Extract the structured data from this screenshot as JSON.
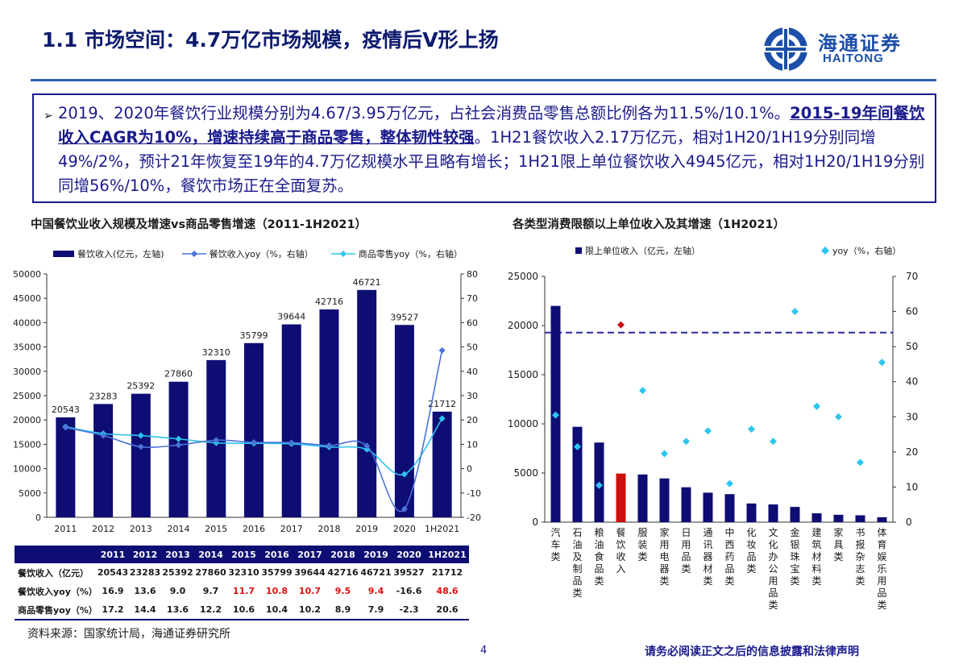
{
  "header": {
    "title": "1.1 市场空间：4.7万亿市场规模，疫情后V形上扬",
    "logo_cn": "海通证券",
    "logo_en": "HAITONG"
  },
  "summary": {
    "bullet": "➢",
    "text_1": "2019、2020年餐饮行业规模分别为4.67/3.95万亿元，占社会消费品零售总额比例各为11.5%/10.1%。",
    "text_2_bold": "2015-19年间餐饮收入CAGR为10%，增速持续高于商品零售，整体韧性较强",
    "text_3": "。1H21餐饮收入2.17万亿元，相对1H20/1H19分别同增49%/2%，预计21年恢复至19年的4.7万亿规模水平且略有增长；1H21限上单位餐饮收入4945亿元，相对1H20/1H19分别同增56%/10%，餐饮市场正在全面复苏。"
  },
  "chart_data": [
    {
      "type": "bar",
      "title": "中国餐饮业收入规模及增速vs商品零售增速（2011-1H2021）",
      "categories": [
        "2011",
        "2012",
        "2013",
        "2014",
        "2015",
        "2016",
        "2017",
        "2018",
        "2019",
        "2020",
        "1H2021"
      ],
      "series": [
        {
          "name": "餐饮收入(亿元，左轴)",
          "type": "bar",
          "axis": "left",
          "values": [
            20543,
            23283,
            25392,
            27860,
            32310,
            35799,
            39644,
            42716,
            46721,
            39527,
            21712
          ]
        },
        {
          "name": "餐饮收入yoy（%，右轴）",
          "type": "line",
          "axis": "right",
          "values": [
            16.9,
            13.6,
            9.0,
            9.7,
            11.7,
            10.8,
            10.7,
            9.5,
            9.4,
            -16.6,
            48.6
          ]
        },
        {
          "name": "商品零售yoy（%，右轴）",
          "type": "line",
          "axis": "right",
          "values": [
            17.2,
            14.4,
            13.6,
            12.2,
            10.6,
            10.4,
            10.2,
            8.9,
            7.9,
            -2.3,
            20.6
          ]
        }
      ],
      "left_axis": {
        "ylim": [
          0,
          50000
        ],
        "ticks": [
          "50000",
          "45000",
          "40000",
          "35000",
          "30000",
          "25000",
          "20000",
          "15000",
          "10000",
          "5000",
          "0"
        ]
      },
      "right_axis": {
        "ylim": [
          -20,
          80
        ],
        "ticks": [
          "80",
          "70",
          "60",
          "50",
          "40",
          "30",
          "20",
          "10",
          "0",
          "-10",
          "-20"
        ]
      },
      "data_labels": [
        "20543",
        "23283",
        "25392",
        "27860",
        "32310",
        "35799",
        "39644",
        "42716",
        "46721",
        "39527",
        "21712"
      ],
      "colors": {
        "bar": "#0d0d73",
        "line1": "#4a73d9",
        "line2": "#2ec5f0"
      },
      "table": {
        "header": [
          "2011",
          "2012",
          "2013",
          "2014",
          "2015",
          "2016",
          "2017",
          "2018",
          "2019",
          "2020",
          "1H2021"
        ],
        "rows": [
          {
            "label": "餐饮收入（亿元）",
            "cells": [
              "20543",
              "23283",
              "25392",
              "27860",
              "32310",
              "35799",
              "39644",
              "42716",
              "46721",
              "39527",
              "21712"
            ],
            "red": []
          },
          {
            "label": "餐饮收入yoy（%）",
            "cells": [
              "16.9",
              "13.6",
              "9.0",
              "9.7",
              "11.7",
              "10.8",
              "10.7",
              "9.5",
              "9.4",
              "-16.6",
              "48.6"
            ],
            "red": [
              4,
              5,
              6,
              7,
              8,
              10
            ]
          },
          {
            "label": "商品零售yoy（%）",
            "cells": [
              "17.2",
              "14.4",
              "13.6",
              "12.2",
              "10.6",
              "10.4",
              "10.2",
              "8.9",
              "7.9",
              "-2.3",
              "20.6"
            ],
            "red": []
          }
        ]
      }
    },
    {
      "type": "bar",
      "title": "各类型消费限额以上单位收入及其增速（1H2021）",
      "categories": [
        "汽车类",
        "石油及制品类",
        "粮油食品类",
        "餐饮收入",
        "服装类",
        "家用电器类",
        "日用品类",
        "通讯器材类",
        "中西药品类",
        "化妆品类",
        "文化办公用品类",
        "金银珠宝类",
        "建筑材料类",
        "家具类",
        "书报杂志类",
        "体育娱乐用品类"
      ],
      "series": [
        {
          "name": "限上单位收入（亿元，左轴）",
          "type": "bar",
          "axis": "left",
          "values": [
            22000,
            9700,
            8100,
            4945,
            4850,
            4450,
            3550,
            3000,
            2850,
            1900,
            1800,
            1550,
            900,
            750,
            700,
            500
          ]
        },
        {
          "name": "yoy（%，右轴）",
          "type": "scatter",
          "axis": "right",
          "values": [
            30.5,
            21.5,
            10.5,
            56.2,
            37.5,
            19.5,
            23.0,
            26.0,
            11.0,
            26.5,
            23.0,
            60.0,
            33.0,
            30.0,
            17.0,
            45.5
          ]
        }
      ],
      "highlight_index": 3,
      "reference_line": {
        "axis": "right",
        "value": 54
      },
      "left_axis": {
        "ylim": [
          0,
          25000
        ],
        "ticks": [
          "25000",
          "20000",
          "15000",
          "10000",
          "5000",
          "0"
        ]
      },
      "right_axis": {
        "ylim": [
          0,
          70
        ],
        "ticks": [
          "70",
          "60",
          "50",
          "40",
          "30",
          "20",
          "10",
          "0"
        ]
      },
      "colors": {
        "bar": "#0d0d73",
        "highlight": "#cc1010",
        "dot": "#2ec5f0",
        "ref": "#2a2a9e"
      }
    }
  ],
  "footer": {
    "source": "资料来源：国家统计局，海通证券研究所",
    "page": "4",
    "disclaimer": "请务必阅读正文之后的信息披露和法律声明"
  }
}
